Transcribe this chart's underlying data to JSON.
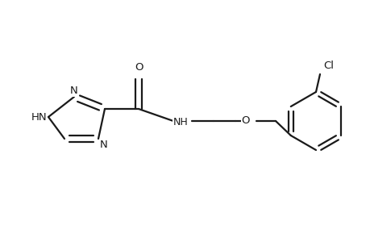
{
  "background_color": "#ffffff",
  "line_color": "#1a1a1a",
  "line_width": 1.6,
  "font_size": 9.5,
  "figsize": [
    4.6,
    3.0
  ],
  "dpi": 100,
  "xlim": [
    0.0,
    4.6
  ],
  "ylim": [
    0.0,
    3.0
  ]
}
